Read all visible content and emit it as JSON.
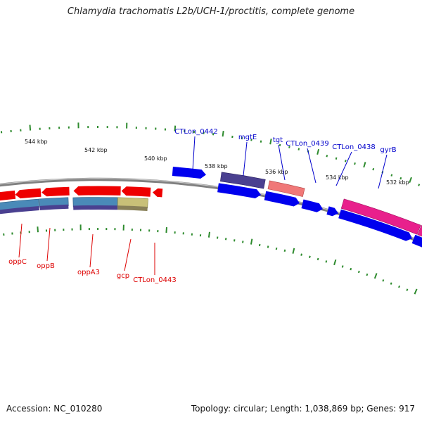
{
  "title": "Chlamydia trachomatis L2b/UCH-1/proctitis, complete genome",
  "accession": "Accession: NC_010280",
  "summary": "Topology: circular; Length: 1,038,869 bp; Genes: 917",
  "scale_ticks": [
    {
      "label": "544 kbp"
    },
    {
      "label": "542 kbp"
    },
    {
      "label": "540 kbp"
    },
    {
      "label": "538 kbp"
    },
    {
      "label": "536 kbp"
    },
    {
      "label": "534 kbp"
    },
    {
      "label": "532 kbp"
    }
  ],
  "forward_labels": [
    {
      "text": "CTLon_0442"
    },
    {
      "text": "mgtE"
    },
    {
      "text": "tgt"
    },
    {
      "text": "CTLon_0439"
    },
    {
      "text": "CTLon_0438"
    },
    {
      "text": "gyrB"
    }
  ],
  "reverse_labels": [
    {
      "text": "oppC"
    },
    {
      "text": "oppB"
    },
    {
      "text": "oppA3"
    },
    {
      "text": "gcp"
    },
    {
      "text": "CTLon_0443"
    }
  ],
  "colors": {
    "forward_label": "#0000cc",
    "reverse_label": "#dd0000",
    "backbone": "#808080",
    "tick": "#2e8b2e",
    "cds_forward": "#0000ee",
    "cds_reverse": "#ee0000"
  }
}
